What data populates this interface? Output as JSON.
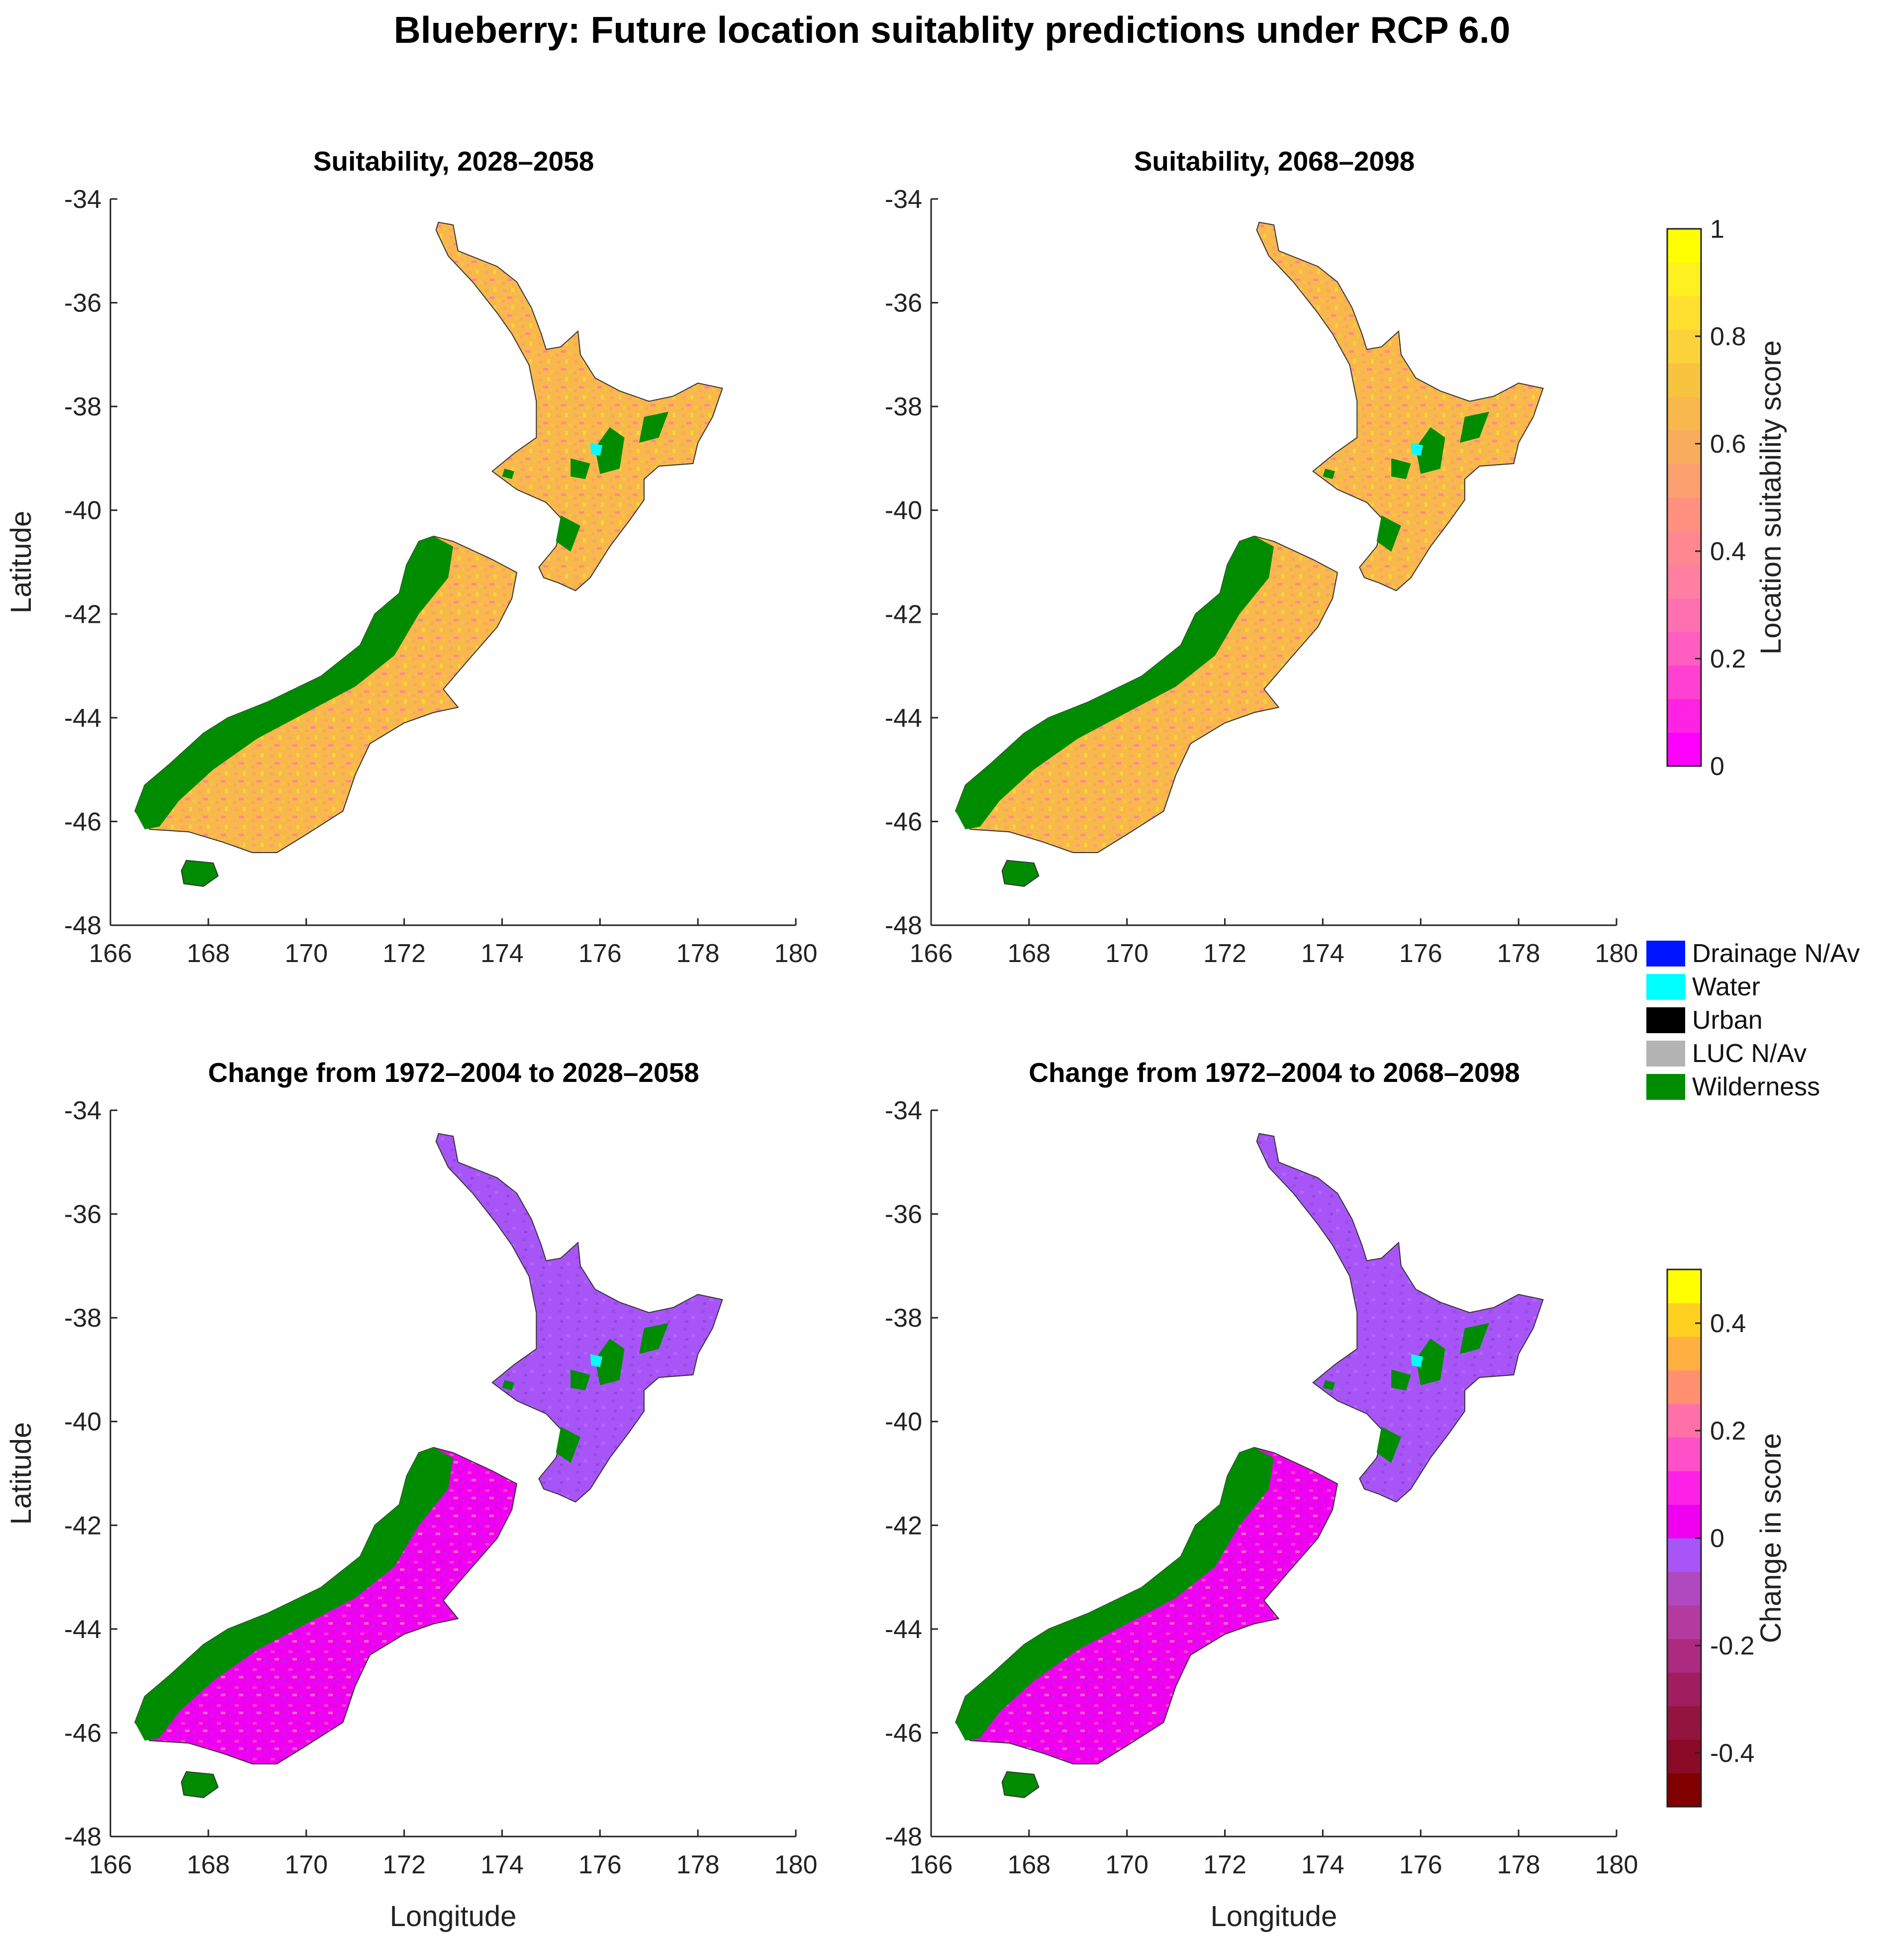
{
  "title": "Blueberry: Future location suitablity predictions under RCP 6.0",
  "panels": [
    {
      "id": "tl",
      "title": "Suitability, 2028–2058",
      "style": "suit",
      "proj": "mid"
    },
    {
      "id": "tr",
      "title": "Suitability, 2068–2098",
      "style": "suit",
      "proj": "late"
    },
    {
      "id": "bl",
      "title": "Change from 1972–2004 to 2028–2058",
      "style": "chg",
      "proj": "mid"
    },
    {
      "id": "br",
      "title": "Change from 1972–2004 to 2068–2098",
      "style": "chg",
      "proj": "late"
    }
  ],
  "axes": {
    "x_ticks": [
      "166",
      "168",
      "170",
      "172",
      "174",
      "176",
      "178",
      "180"
    ],
    "y_ticks": [
      "-34",
      "-36",
      "-38",
      "-40",
      "-42",
      "-44",
      "-46",
      "-48"
    ],
    "xlabel": "Longitude",
    "ylabel": "Latitude"
  },
  "colorbars": {
    "suitability": {
      "label": "Location suitability score",
      "ticks": [
        "1",
        "0.8",
        "0.6",
        "0.4",
        "0.2",
        "0"
      ],
      "colors": [
        "#ff00ff",
        "#ff22e4",
        "#ff40d0",
        "#ff5ec0",
        "#ff70b0",
        "#ff7fa0",
        "#ff8890",
        "#ff9080",
        "#fca070",
        "#f8ad5c",
        "#f8b84c",
        "#f8c440",
        "#fbd23a",
        "#ffe030",
        "#fff020",
        "#ffff00"
      ]
    },
    "change": {
      "label": "Change in score",
      "ticks": [
        "0.4",
        "0.2",
        "0",
        "-0.2",
        "-0.4"
      ],
      "colors": [
        "#800000",
        "#8a0a28",
        "#941440",
        "#a01e60",
        "#ac2a80",
        "#b43aa0",
        "#b048c0",
        "#a855f7",
        "#f000f0",
        "#ff20e8",
        "#ff50c8",
        "#ff70a8",
        "#ff9070",
        "#ffb040",
        "#ffd020",
        "#ffff00"
      ]
    }
  },
  "legend": [
    {
      "label": "Drainage N/Av",
      "color": "#0015ff"
    },
    {
      "label": "Water",
      "color": "#00ffff"
    },
    {
      "label": "Urban",
      "color": "#000000"
    },
    {
      "label": "LUC N/Av",
      "color": "#b3b3b3"
    },
    {
      "label": "Wilderness",
      "color": "#008c00"
    }
  ]
}
